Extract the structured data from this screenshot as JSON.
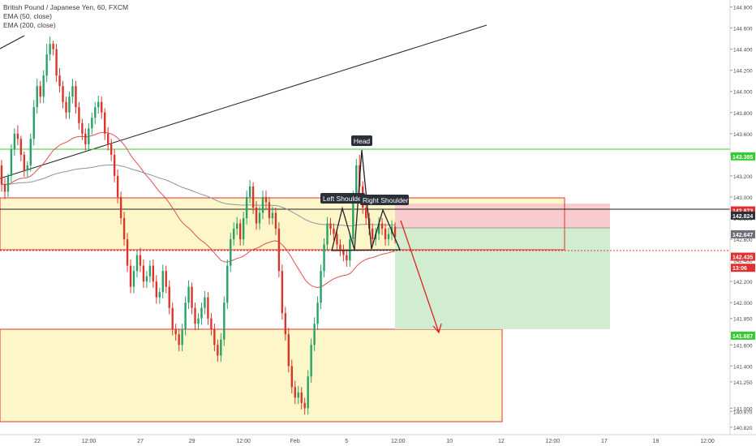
{
  "legend": {
    "title": "British Pound / Japanese Yen, 60, FXCM",
    "ema50": "EMA (50, close)",
    "ema200": "EMA (200, close)"
  },
  "colors": {
    "up": "#26a269",
    "down": "#d9352b",
    "ema50": "#e05050",
    "ema200": "#8a93a6",
    "green_line": "#33cc33",
    "red_box": "#e03030",
    "zone_fill": "#fdf6c8",
    "target_fill": "#cfeccf",
    "stop_fill": "#f8c8cc",
    "arrow": "#e02020",
    "badge_dark": "#2b2f38"
  },
  "chart_data": {
    "type": "candlestick",
    "symbol": "British Pound / Japanese Yen, 60, FXCM",
    "indicators": [
      "EMA (50, close)",
      "EMA (200, close)"
    ],
    "ylim": [
      140.75,
      144.85
    ],
    "y_ticks": [
      "144.800",
      "144.600",
      "144.400",
      "144.200",
      "144.000",
      "143.800",
      "143.600",
      "143.400",
      "143.200",
      "143.000",
      "142.800",
      "142.600",
      "142.400",
      "142.200",
      "142.000",
      "141.850",
      "141.600",
      "141.400",
      "141.250",
      "141.000",
      "140.970",
      "140.820"
    ],
    "x_ticks": [
      "22",
      "12:00",
      "27",
      "29",
      "12:00",
      "Feb",
      "5",
      "12:00",
      "10",
      "12",
      "12:00",
      "17",
      "19",
      "12:00"
    ],
    "price_labels": [
      {
        "text": "143.385",
        "value": 143.385,
        "style": "green"
      },
      {
        "text": "142.873",
        "value": 142.873,
        "style": "red"
      },
      {
        "text": "142.824",
        "value": 142.824,
        "style": "dark"
      },
      {
        "text": "142.647",
        "value": 142.647,
        "style": "gray"
      },
      {
        "text": "142.435",
        "value": 142.435,
        "style": "red"
      },
      {
        "text": "13:06",
        "value": 142.33,
        "style": "red"
      },
      {
        "text": "141.687",
        "value": 141.687,
        "style": "green"
      }
    ],
    "horizontal_lines": [
      {
        "name": "resistance-green",
        "value": 143.385
      },
      {
        "name": "current-black",
        "value": 142.824
      }
    ],
    "zones": [
      {
        "name": "upper-zone",
        "from": 142.435,
        "to": 142.89
      },
      {
        "name": "lower-zone",
        "from": 140.83,
        "to": 141.69
      }
    ],
    "trade": {
      "entry": 142.647,
      "stop": 142.873,
      "target": 141.687
    },
    "annotations": [
      "Head",
      "Left Shoulder",
      "Right Shoulder"
    ],
    "candles": {
      "open": [
        143.3,
        143.12,
        143.05,
        143.2,
        143.45,
        143.6,
        143.55,
        143.4,
        143.25,
        143.3,
        143.55,
        143.85,
        144.05,
        143.95,
        144.15,
        144.35,
        144.45,
        144.4,
        144.15,
        144.05,
        143.9,
        143.8,
        143.95,
        144.05,
        143.85,
        143.7,
        143.6,
        143.5,
        143.65,
        143.75,
        143.85,
        143.9,
        143.8,
        143.6,
        143.5,
        143.4,
        143.2,
        143.0,
        142.8,
        142.6,
        142.35,
        142.15,
        142.3,
        142.45,
        142.35,
        142.2,
        142.25,
        142.35,
        142.2,
        142.05,
        142.1,
        142.3,
        142.15,
        141.95,
        141.75,
        141.7,
        141.6,
        141.75,
        142.0,
        142.15,
        141.95,
        141.8,
        141.85,
        141.95,
        142.05,
        141.85,
        141.75,
        141.6,
        141.5,
        141.65,
        142.0,
        142.35,
        142.6,
        142.7,
        142.75,
        142.6,
        142.8,
        143.0,
        143.1,
        142.9,
        142.75,
        142.85,
        143.0,
        142.95,
        142.8,
        142.85,
        142.7,
        142.3,
        141.9,
        141.7,
        141.4,
        141.2,
        141.1,
        141.15,
        141.05,
        141.0,
        141.3,
        141.6,
        141.8,
        142.0,
        142.3,
        142.55,
        142.75,
        142.7,
        142.65,
        142.55,
        142.5,
        142.45,
        142.4,
        142.6,
        143.0,
        143.3,
        143.1,
        142.9,
        142.8,
        142.7,
        142.6,
        142.65,
        142.75,
        142.7,
        142.6,
        142.65,
        142.72
      ],
      "close": [
        143.12,
        143.05,
        143.2,
        143.45,
        143.6,
        143.55,
        143.4,
        143.25,
        143.3,
        143.55,
        143.85,
        144.05,
        143.95,
        144.15,
        144.35,
        144.45,
        144.4,
        144.15,
        144.05,
        143.9,
        143.8,
        143.95,
        144.05,
        143.85,
        143.7,
        143.6,
        143.5,
        143.65,
        143.75,
        143.85,
        143.9,
        143.8,
        143.6,
        143.5,
        143.4,
        143.2,
        143.0,
        142.8,
        142.6,
        142.35,
        142.15,
        142.3,
        142.45,
        142.35,
        142.2,
        142.25,
        142.35,
        142.2,
        142.05,
        142.1,
        142.3,
        142.15,
        141.95,
        141.75,
        141.7,
        141.6,
        141.75,
        142.0,
        142.15,
        141.95,
        141.8,
        141.85,
        141.95,
        142.05,
        141.85,
        141.75,
        141.6,
        141.5,
        141.65,
        142.0,
        142.35,
        142.6,
        142.7,
        142.75,
        142.6,
        142.8,
        143.0,
        143.1,
        142.9,
        142.75,
        142.85,
        143.0,
        142.95,
        142.8,
        142.85,
        142.7,
        142.3,
        141.9,
        141.7,
        141.4,
        141.2,
        141.1,
        141.15,
        141.05,
        141.0,
        141.3,
        141.6,
        141.8,
        142.0,
        142.3,
        142.55,
        142.75,
        142.7,
        142.65,
        142.55,
        142.5,
        142.45,
        142.4,
        142.6,
        143.0,
        143.3,
        143.1,
        142.9,
        142.8,
        142.7,
        142.6,
        142.65,
        142.75,
        142.7,
        142.6,
        142.65,
        142.72,
        142.62
      ],
      "high": [
        143.35,
        143.18,
        143.22,
        143.5,
        143.65,
        143.68,
        143.58,
        143.43,
        143.34,
        143.6,
        143.92,
        144.12,
        144.1,
        144.2,
        144.45,
        144.52,
        144.48,
        144.45,
        144.22,
        144.1,
        143.95,
        144.0,
        144.12,
        144.1,
        143.9,
        143.74,
        143.65,
        143.7,
        143.8,
        143.9,
        143.96,
        143.95,
        143.84,
        143.66,
        143.55,
        143.45,
        143.26,
        143.05,
        142.86,
        142.66,
        142.41,
        142.35,
        142.5,
        142.52,
        142.41,
        142.3,
        142.4,
        142.41,
        142.26,
        142.14,
        142.36,
        142.35,
        142.21,
        142.0,
        141.8,
        141.75,
        141.8,
        142.06,
        142.21,
        142.19,
        142.0,
        141.9,
        142.0,
        142.11,
        142.1,
        141.9,
        141.8,
        141.65,
        141.71,
        142.06,
        142.41,
        142.66,
        142.76,
        142.81,
        142.79,
        142.86,
        143.06,
        143.16,
        143.14,
        142.96,
        142.91,
        143.06,
        143.06,
        143.0,
        142.91,
        142.9,
        142.76,
        142.36,
        141.96,
        141.76,
        141.46,
        141.26,
        141.21,
        141.2,
        141.1,
        141.36,
        141.66,
        141.86,
        142.06,
        142.36,
        142.61,
        142.81,
        142.8,
        142.75,
        142.7,
        142.6,
        142.55,
        142.5,
        142.66,
        143.06,
        143.36,
        143.4,
        143.15,
        142.95,
        142.85,
        142.75,
        142.71,
        142.81,
        142.8,
        142.75,
        142.71,
        142.78,
        142.76
      ],
      "low": [
        143.05,
        142.98,
        143.0,
        143.14,
        143.39,
        143.49,
        143.34,
        143.19,
        143.19,
        143.24,
        143.49,
        143.79,
        143.89,
        143.89,
        144.09,
        144.29,
        144.34,
        144.09,
        143.99,
        143.84,
        143.74,
        143.74,
        143.89,
        143.79,
        143.64,
        143.54,
        143.44,
        143.44,
        143.59,
        143.69,
        143.79,
        143.74,
        143.54,
        143.44,
        143.34,
        143.14,
        142.94,
        142.74,
        142.54,
        142.29,
        142.09,
        142.09,
        142.24,
        142.29,
        142.14,
        142.14,
        142.19,
        142.14,
        141.99,
        141.99,
        142.04,
        142.09,
        141.89,
        141.69,
        141.64,
        141.54,
        141.54,
        141.69,
        141.94,
        141.89,
        141.74,
        141.74,
        141.79,
        141.89,
        141.79,
        141.69,
        141.54,
        141.44,
        141.44,
        141.59,
        141.94,
        142.29,
        142.54,
        142.64,
        142.54,
        142.54,
        142.74,
        142.94,
        142.84,
        142.69,
        142.69,
        142.79,
        142.89,
        142.74,
        142.74,
        142.64,
        142.24,
        141.84,
        141.64,
        141.34,
        141.14,
        141.04,
        141.04,
        140.99,
        140.94,
        140.94,
        141.24,
        141.54,
        141.74,
        141.94,
        142.24,
        142.49,
        142.64,
        142.59,
        142.49,
        142.44,
        142.39,
        142.34,
        142.34,
        142.54,
        142.94,
        143.04,
        142.84,
        142.74,
        142.64,
        142.54,
        142.54,
        142.59,
        142.64,
        142.54,
        142.54,
        142.59,
        142.56
      ]
    },
    "candle_x_range": [
      2,
      487
    ]
  }
}
